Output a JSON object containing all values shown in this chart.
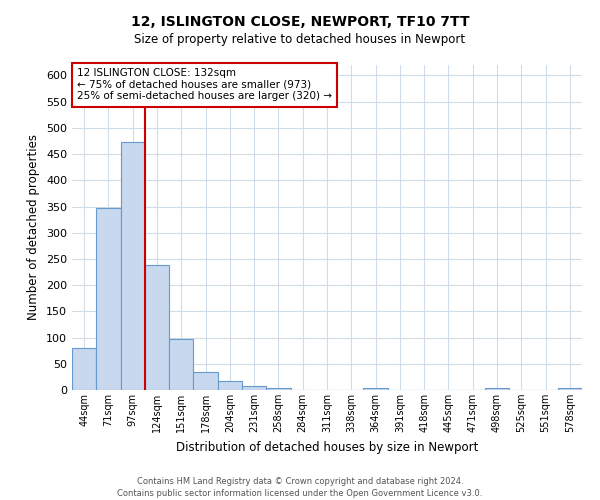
{
  "title": "12, ISLINGTON CLOSE, NEWPORT, TF10 7TT",
  "subtitle": "Size of property relative to detached houses in Newport",
  "xlabel": "Distribution of detached houses by size in Newport",
  "ylabel": "Number of detached properties",
  "bin_labels": [
    "44sqm",
    "71sqm",
    "97sqm",
    "124sqm",
    "151sqm",
    "178sqm",
    "204sqm",
    "231sqm",
    "258sqm",
    "284sqm",
    "311sqm",
    "338sqm",
    "364sqm",
    "391sqm",
    "418sqm",
    "445sqm",
    "471sqm",
    "498sqm",
    "525sqm",
    "551sqm",
    "578sqm"
  ],
  "bar_heights": [
    80,
    348,
    473,
    238,
    97,
    35,
    18,
    8,
    3,
    0,
    0,
    0,
    3,
    0,
    0,
    0,
    0,
    3,
    0,
    0,
    3
  ],
  "bar_color": "#c8d8ee",
  "bar_edge_color": "#6699cc",
  "vline_x_index": 3,
  "vline_color": "#cc0000",
  "annotation_text_line1": "12 ISLINGTON CLOSE: 132sqm",
  "annotation_text_line2": "← 75% of detached houses are smaller (973)",
  "annotation_text_line3": "25% of semi-detached houses are larger (320) →",
  "box_edge_color": "#cc0000",
  "ylim": [
    0,
    620
  ],
  "yticks": [
    0,
    50,
    100,
    150,
    200,
    250,
    300,
    350,
    400,
    450,
    500,
    550,
    600
  ],
  "footnote1": "Contains HM Land Registry data © Crown copyright and database right 2024.",
  "footnote2": "Contains public sector information licensed under the Open Government Licence v3.0.",
  "bg_color": "#ffffff",
  "plot_bg_color": "#ffffff",
  "grid_color": "#d0dce8"
}
